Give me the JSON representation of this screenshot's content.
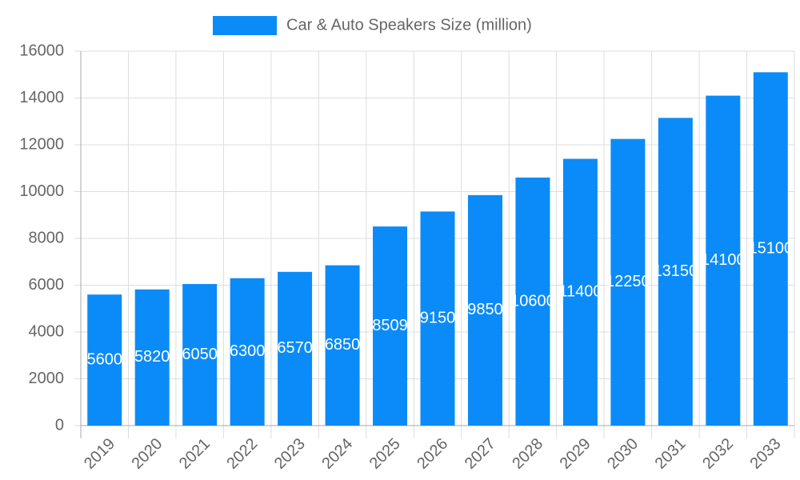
{
  "chart_data": {
    "type": "bar",
    "legend": "Car & Auto Speakers Size (million)",
    "categories": [
      "2019",
      "2020",
      "2021",
      "2022",
      "2023",
      "2024",
      "2025",
      "2026",
      "2027",
      "2028",
      "2029",
      "2030",
      "2031",
      "2032",
      "2033"
    ],
    "values": [
      5600,
      5820,
      6050,
      6300,
      6570,
      6850,
      8509,
      9150,
      9850,
      10600,
      11400,
      12250,
      13150,
      14100,
      15100
    ],
    "color": "#0b8bf8",
    "ylim": [
      0,
      16000
    ],
    "yticks": [
      0,
      2000,
      4000,
      6000,
      8000,
      10000,
      12000,
      14000,
      16000
    ],
    "grid": true
  }
}
